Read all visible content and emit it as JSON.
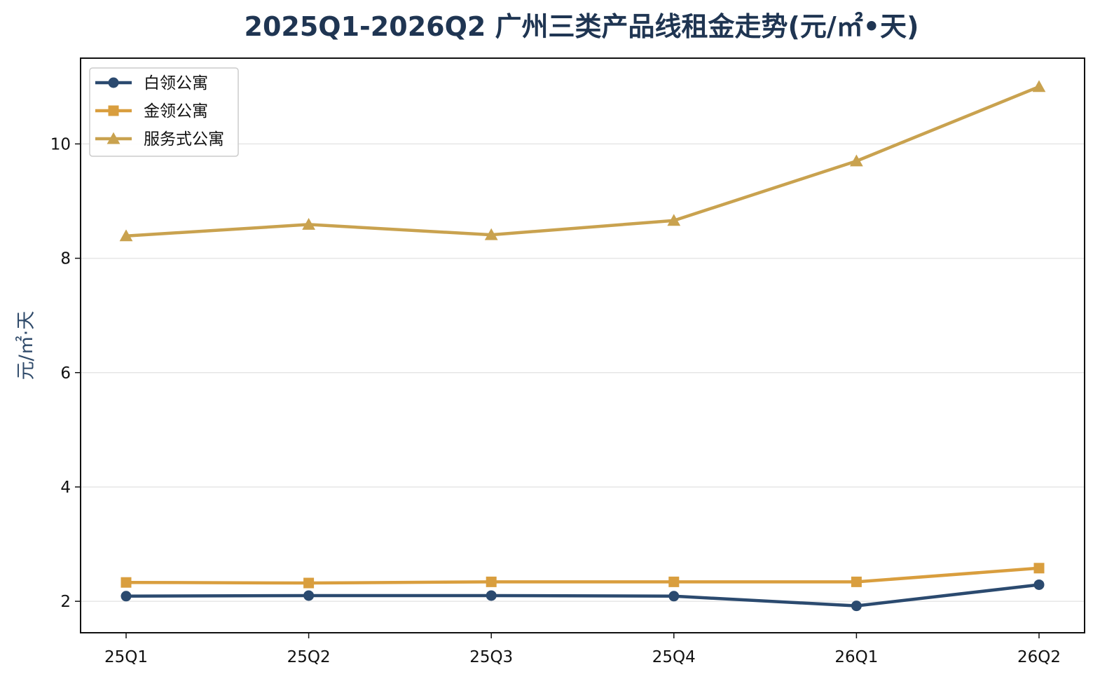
{
  "colors": {
    "title": "#1f3552",
    "axis_label": "#2f4a6a",
    "grid": "#e6e6e6",
    "frame": "#111111"
  },
  "chart_data": {
    "type": "line",
    "title": "2025Q1-2026Q2 广州三类产品线租金走势(元/㎡•天)",
    "xlabel": "",
    "ylabel": "元/㎡·天",
    "categories": [
      "25Q1",
      "25Q2",
      "25Q3",
      "25Q4",
      "26Q1",
      "26Q2"
    ],
    "ylim": [
      1.45,
      11.5
    ],
    "yticks": [
      2,
      4,
      6,
      8,
      10
    ],
    "grid": "horizontal",
    "legend_position": "top-left",
    "series": [
      {
        "name": "白领公寓",
        "values": [
          2.09,
          2.1,
          2.1,
          2.09,
          1.92,
          2.29
        ],
        "color": "#2b4a6f",
        "marker": "circle"
      },
      {
        "name": "金领公寓",
        "values": [
          2.33,
          2.32,
          2.34,
          2.34,
          2.34,
          2.58
        ],
        "color": "#d99e3e",
        "marker": "square"
      },
      {
        "name": "服务式公寓",
        "values": [
          8.39,
          8.59,
          8.41,
          8.66,
          9.7,
          11.0
        ],
        "color": "#c9a24f",
        "marker": "triangle"
      }
    ]
  }
}
